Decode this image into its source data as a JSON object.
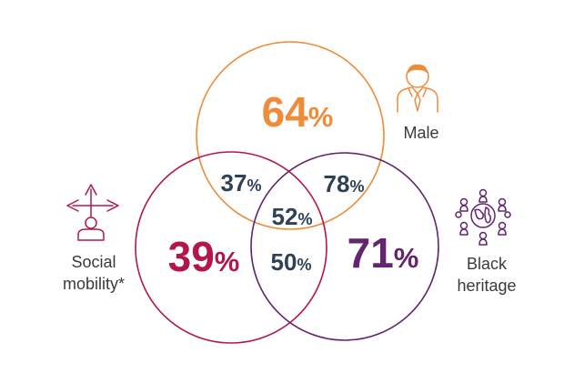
{
  "venn": {
    "sets": [
      {
        "id": "male",
        "label_lines": [
          "Male"
        ],
        "value": "64%",
        "color": "#EE8C3A",
        "icon": "person-icon"
      },
      {
        "id": "social",
        "label_lines": [
          "Social",
          "mobility*"
        ],
        "value": "39%",
        "color": "#B3174A",
        "icon": "crossroads-person-icon"
      },
      {
        "id": "black",
        "label_lines": [
          "Black",
          "heritage"
        ],
        "value": "71%",
        "color": "#62256E",
        "icon": "globe-people-icon"
      }
    ],
    "overlaps": [
      {
        "sets": [
          "male",
          "social"
        ],
        "value": "37%"
      },
      {
        "sets": [
          "male",
          "black"
        ],
        "value": "78%"
      },
      {
        "sets": [
          "social",
          "black"
        ],
        "value": "50%"
      },
      {
        "sets": [
          "male",
          "social",
          "black"
        ],
        "value": "52%"
      }
    ],
    "overlap_color": "#2D4256"
  }
}
